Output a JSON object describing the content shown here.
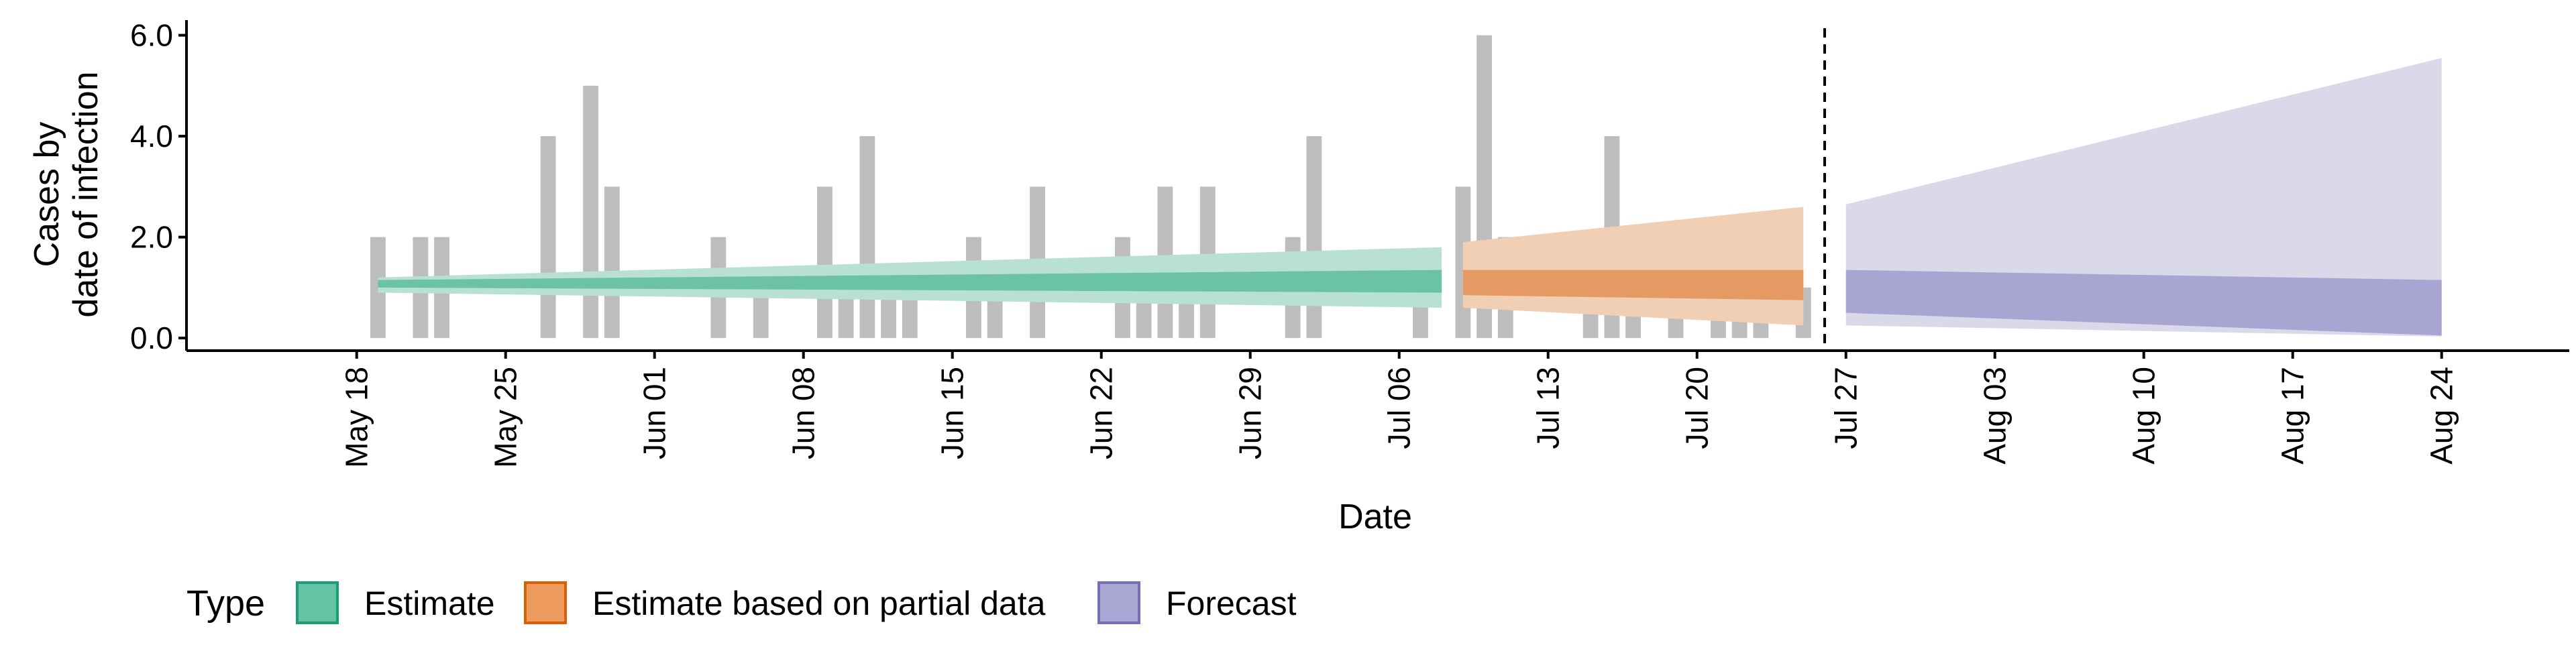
{
  "chart_data": {
    "type": "area",
    "xlabel": "Date",
    "ylabel_lines": [
      "Cases by",
      "date of infection"
    ],
    "x_ticks": [
      "May 18",
      "May 25",
      "Jun 01",
      "Jun 08",
      "Jun 15",
      "Jun 22",
      "Jun 29",
      "Jul 06",
      "Jul 13",
      "Jul 20",
      "Jul 27",
      "Aug 03",
      "Aug 10",
      "Aug 17",
      "Aug 24"
    ],
    "y_ticks": [
      "0.0",
      "2.0",
      "4.0",
      "6.0"
    ],
    "ylim": [
      -0.25,
      6.3
    ],
    "xlim": [
      "2020-05-10",
      "2020-08-30"
    ],
    "x_tick_dates": [
      "2020-05-18",
      "2020-05-25",
      "2020-06-01",
      "2020-06-08",
      "2020-06-15",
      "2020-06-22",
      "2020-06-29",
      "2020-07-06",
      "2020-07-13",
      "2020-07-20",
      "2020-07-27",
      "2020-08-03",
      "2020-08-10",
      "2020-08-17",
      "2020-08-24"
    ],
    "vline_date": "2020-07-26",
    "grid": false,
    "legend_position": "bottom",
    "legend": {
      "title": "Type",
      "items": [
        {
          "label": "Estimate",
          "fill": "#66c2a5",
          "stroke": "#1b9e77"
        },
        {
          "label": "Estimate based on partial data",
          "fill": "#ec9a5e",
          "stroke": "#d95f02"
        },
        {
          "label": "Forecast",
          "fill": "#a9a6d4",
          "stroke": "#7570b3"
        }
      ]
    },
    "colors": {
      "bars": "#bdbdbd",
      "estimate_outer": "#b9e1d2",
      "estimate_inner": "#6cc3a4",
      "partial_outer": "#f1cfb4",
      "partial_inner": "#e59a63",
      "forecast_outer": "#dad9ea",
      "forecast_inner": "#a9a5d3",
      "vline": "#000000"
    },
    "bars": [
      {
        "date": "2020-05-19",
        "value": 2
      },
      {
        "date": "2020-05-21",
        "value": 2
      },
      {
        "date": "2020-05-22",
        "value": 2
      },
      {
        "date": "2020-05-27",
        "value": 4
      },
      {
        "date": "2020-05-29",
        "value": 5
      },
      {
        "date": "2020-05-30",
        "value": 3
      },
      {
        "date": "2020-06-04",
        "value": 2
      },
      {
        "date": "2020-06-06",
        "value": 1
      },
      {
        "date": "2020-06-09",
        "value": 3
      },
      {
        "date": "2020-06-10",
        "value": 1
      },
      {
        "date": "2020-06-11",
        "value": 4
      },
      {
        "date": "2020-06-12",
        "value": 1
      },
      {
        "date": "2020-06-13",
        "value": 1
      },
      {
        "date": "2020-06-16",
        "value": 2
      },
      {
        "date": "2020-06-17",
        "value": 1
      },
      {
        "date": "2020-06-19",
        "value": 3
      },
      {
        "date": "2020-06-23",
        "value": 2
      },
      {
        "date": "2020-06-24",
        "value": 1
      },
      {
        "date": "2020-06-25",
        "value": 3
      },
      {
        "date": "2020-06-26",
        "value": 1
      },
      {
        "date": "2020-06-27",
        "value": 3
      },
      {
        "date": "2020-07-01",
        "value": 2
      },
      {
        "date": "2020-07-02",
        "value": 4
      },
      {
        "date": "2020-07-07",
        "value": 1
      },
      {
        "date": "2020-07-09",
        "value": 3
      },
      {
        "date": "2020-07-10",
        "value": 6
      },
      {
        "date": "2020-07-11",
        "value": 2
      },
      {
        "date": "2020-07-15",
        "value": 2
      },
      {
        "date": "2020-07-16",
        "value": 4
      },
      {
        "date": "2020-07-17",
        "value": 1
      },
      {
        "date": "2020-07-19",
        "value": 2
      },
      {
        "date": "2020-07-21",
        "value": 1
      },
      {
        "date": "2020-07-22",
        "value": 2
      },
      {
        "date": "2020-07-23",
        "value": 1
      },
      {
        "date": "2020-07-25",
        "value": 1
      }
    ],
    "bands": [
      {
        "type": "Estimate",
        "start": "2020-05-19",
        "end": "2020-07-08",
        "outer_lo_start": 0.9,
        "outer_lo_end": 0.6,
        "outer_hi_start": 1.2,
        "outer_hi_end": 1.8,
        "inner_lo_start": 1.0,
        "inner_lo_end": 0.9,
        "inner_hi_start": 1.15,
        "inner_hi_end": 1.35
      },
      {
        "type": "Estimate based on partial data",
        "start": "2020-07-09",
        "end": "2020-07-25",
        "outer_lo_start": 0.6,
        "outer_lo_end": 0.25,
        "outer_hi_start": 1.9,
        "outer_hi_end": 2.6,
        "inner_lo_start": 0.85,
        "inner_lo_end": 0.75,
        "inner_hi_start": 1.35,
        "inner_hi_end": 1.35
      },
      {
        "type": "Forecast",
        "start": "2020-07-27",
        "end": "2020-08-24",
        "outer_lo_start": 0.25,
        "outer_lo_end": 0.03,
        "outer_hi_start": 2.65,
        "outer_hi_end": 5.55,
        "inner_lo_start": 0.5,
        "inner_lo_end": 0.05,
        "inner_hi_start": 1.35,
        "inner_hi_end": 1.15
      }
    ]
  }
}
